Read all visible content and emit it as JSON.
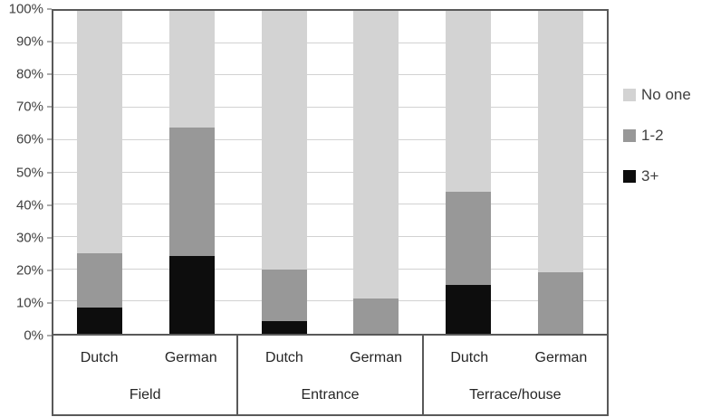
{
  "chart_data": {
    "type": "bar",
    "subtype": "stacked-100-percent",
    "title": "",
    "xlabel": "",
    "ylabel": "",
    "ylim": [
      0,
      100
    ],
    "ytick_step": 10,
    "ytick_suffix": "%",
    "grid": true,
    "legend_position": "right",
    "series_order_bottom_to_top": [
      "3+",
      "1-2",
      "No one"
    ],
    "legend": [
      {
        "label": "No one",
        "color": "#d3d3d3"
      },
      {
        "label": "1-2",
        "color": "#989898"
      },
      {
        "label": "3+",
        "color": "#0d0d0d"
      }
    ],
    "groups": [
      {
        "label": "Field",
        "bars": [
          {
            "label": "Dutch",
            "values": {
              "3+": 8,
              "1-2": 17,
              "No one": 75
            }
          },
          {
            "label": "German",
            "values": {
              "3+": 24,
              "1-2": 40,
              "No one": 36
            }
          }
        ]
      },
      {
        "label": "Entrance",
        "bars": [
          {
            "label": "Dutch",
            "values": {
              "3+": 4,
              "1-2": 16,
              "No one": 80
            }
          },
          {
            "label": "German",
            "values": {
              "3+": 0,
              "1-2": 11,
              "No one": 89
            }
          }
        ]
      },
      {
        "label": "Terrace/house",
        "bars": [
          {
            "label": "Dutch",
            "values": {
              "3+": 15,
              "1-2": 29,
              "No one": 56
            }
          },
          {
            "label": "German",
            "values": {
              "3+": 0,
              "1-2": 19,
              "No one": 81
            }
          }
        ]
      }
    ],
    "colors": {
      "plot_border": "#595959",
      "gridline": "#d2d2d2",
      "axis_text": "#404040",
      "category_text": "#262626"
    }
  }
}
